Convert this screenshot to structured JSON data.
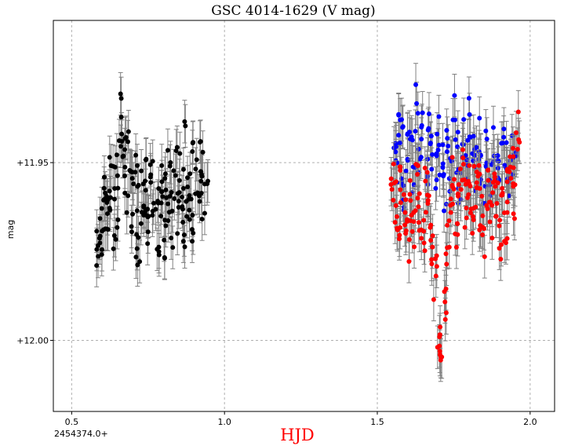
{
  "chart_data": {
    "type": "scatter",
    "title": "GSC 4014-1629 (V mag)",
    "xlabel": "HJD",
    "ylabel": "mag",
    "x_offset_label": "2454374.0+",
    "xlim": [
      0.44,
      2.08
    ],
    "ylim": [
      12.02,
      11.91
    ],
    "y_inverted": true,
    "xticks": [
      0.5,
      1.0,
      1.5,
      2.0
    ],
    "xtick_labels": [
      "0.5",
      "1.0",
      "1.5",
      "2.0"
    ],
    "yticks": [
      11.95,
      12.0
    ],
    "ytick_labels": [
      "+11.95",
      "+12.00"
    ],
    "grid": true,
    "error_bar_color": "#808080",
    "xlabel_color": "#ff0000",
    "series": [
      {
        "color": "#000000",
        "x_range": [
          0.58,
          0.94
        ],
        "n_points": 200,
        "mag_mean": 11.962,
        "mag_range": [
          11.979,
          11.929
        ],
        "typical_error": 0.006,
        "points": [
          [
            0.58,
            11.972
          ],
          [
            0.59,
            11.968
          ],
          [
            0.59,
            11.975
          ],
          [
            0.6,
            11.966
          ],
          [
            0.6,
            11.97
          ],
          [
            0.61,
            11.962
          ],
          [
            0.61,
            11.955
          ],
          [
            0.62,
            11.96
          ],
          [
            0.62,
            11.966
          ],
          [
            0.63,
            11.952
          ],
          [
            0.63,
            11.961
          ],
          [
            0.64,
            11.97
          ],
          [
            0.64,
            11.958
          ],
          [
            0.65,
            11.948
          ],
          [
            0.65,
            11.964
          ],
          [
            0.66,
            11.935
          ],
          [
            0.66,
            11.943
          ],
          [
            0.67,
            11.949
          ],
          [
            0.67,
            11.955
          ],
          [
            0.68,
            11.94
          ],
          [
            0.68,
            11.962
          ],
          [
            0.69,
            11.95
          ],
          [
            0.7,
            11.967
          ],
          [
            0.7,
            11.958
          ],
          [
            0.71,
            11.97
          ],
          [
            0.71,
            11.953
          ],
          [
            0.72,
            11.962
          ],
          [
            0.72,
            11.975
          ],
          [
            0.73,
            11.958
          ],
          [
            0.73,
            11.966
          ],
          [
            0.74,
            11.952
          ],
          [
            0.74,
            11.961
          ],
          [
            0.75,
            11.97
          ],
          [
            0.75,
            11.964
          ],
          [
            0.76,
            11.948
          ],
          [
            0.76,
            11.957
          ],
          [
            0.77,
            11.966
          ],
          [
            0.78,
            11.972
          ],
          [
            0.78,
            11.96
          ],
          [
            0.79,
            11.968
          ],
          [
            0.79,
            11.955
          ],
          [
            0.8,
            11.962
          ],
          [
            0.8,
            11.976
          ],
          [
            0.81,
            11.958
          ],
          [
            0.81,
            11.966
          ],
          [
            0.82,
            11.95
          ],
          [
            0.82,
            11.962
          ],
          [
            0.83,
            11.97
          ],
          [
            0.83,
            11.956
          ],
          [
            0.84,
            11.947
          ],
          [
            0.85,
            11.958
          ],
          [
            0.85,
            11.965
          ],
          [
            0.86,
            11.953
          ],
          [
            0.86,
            11.96
          ],
          [
            0.87,
            11.968
          ],
          [
            0.87,
            11.945
          ],
          [
            0.88,
            11.955
          ],
          [
            0.88,
            11.962
          ],
          [
            0.89,
            11.97
          ],
          [
            0.89,
            11.958
          ],
          [
            0.9,
            11.95
          ],
          [
            0.9,
            11.965
          ],
          [
            0.91,
            11.956
          ],
          [
            0.92,
            11.948
          ],
          [
            0.92,
            11.962
          ],
          [
            0.93,
            11.953
          ],
          [
            0.93,
            11.96
          ],
          [
            0.94,
            11.958
          ]
        ]
      },
      {
        "color": "#0000ff",
        "x_range": [
          1.55,
          1.95
        ],
        "n_points": 170,
        "mag_mean": 11.95,
        "mag_range": [
          11.966,
          11.928
        ],
        "typical_error": 0.006,
        "points": [
          [
            1.56,
            11.945
          ],
          [
            1.56,
            11.952
          ],
          [
            1.57,
            11.938
          ],
          [
            1.58,
            11.95
          ],
          [
            1.58,
            11.943
          ],
          [
            1.59,
            11.957
          ],
          [
            1.6,
            11.946
          ],
          [
            1.61,
            11.94
          ],
          [
            1.62,
            11.952
          ],
          [
            1.63,
            11.935
          ],
          [
            1.64,
            11.948
          ],
          [
            1.65,
            11.942
          ],
          [
            1.66,
            11.955
          ],
          [
            1.67,
            11.939
          ],
          [
            1.68,
            11.947
          ],
          [
            1.69,
            11.953
          ],
          [
            1.7,
            11.941
          ],
          [
            1.71,
            11.948
          ],
          [
            1.72,
            11.958
          ],
          [
            1.73,
            11.944
          ],
          [
            1.74,
            11.952
          ],
          [
            1.75,
            11.938
          ],
          [
            1.76,
            11.946
          ],
          [
            1.77,
            11.955
          ],
          [
            1.78,
            11.942
          ],
          [
            1.79,
            11.949
          ],
          [
            1.8,
            11.937
          ],
          [
            1.81,
            11.946
          ],
          [
            1.82,
            11.952
          ],
          [
            1.83,
            11.943
          ],
          [
            1.84,
            11.95
          ],
          [
            1.85,
            11.956
          ],
          [
            1.86,
            11.947
          ],
          [
            1.87,
            11.953
          ],
          [
            1.88,
            11.944
          ],
          [
            1.89,
            11.949
          ],
          [
            1.9,
            11.955
          ],
          [
            1.91,
            11.946
          ],
          [
            1.92,
            11.951
          ],
          [
            1.93,
            11.958
          ],
          [
            1.94,
            11.948
          ],
          [
            1.95,
            11.954
          ]
        ]
      },
      {
        "color": "#ff0000",
        "x_range": [
          1.55,
          1.96
        ],
        "n_points": 200,
        "mag_mean": 11.958,
        "mag_range": [
          12.006,
          11.935
        ],
        "typical_error": 0.006,
        "points": [
          [
            1.55,
            11.955
          ],
          [
            1.56,
            11.962
          ],
          [
            1.57,
            11.968
          ],
          [
            1.58,
            11.958
          ],
          [
            1.59,
            11.965
          ],
          [
            1.6,
            11.972
          ],
          [
            1.61,
            11.96
          ],
          [
            1.62,
            11.967
          ],
          [
            1.63,
            11.955
          ],
          [
            1.64,
            11.963
          ],
          [
            1.65,
            11.97
          ],
          [
            1.66,
            11.958
          ],
          [
            1.67,
            11.966
          ],
          [
            1.68,
            11.975
          ],
          [
            1.69,
            11.983
          ],
          [
            1.7,
            11.995
          ],
          [
            1.71,
            12.003
          ],
          [
            1.72,
            11.988
          ],
          [
            1.73,
            11.972
          ],
          [
            1.74,
            11.962
          ],
          [
            1.75,
            11.955
          ],
          [
            1.76,
            11.968
          ],
          [
            1.77,
            11.958
          ],
          [
            1.78,
            11.95
          ],
          [
            1.79,
            11.962
          ],
          [
            1.8,
            11.955
          ],
          [
            1.81,
            11.966
          ],
          [
            1.82,
            11.958
          ],
          [
            1.83,
            11.952
          ],
          [
            1.84,
            11.963
          ],
          [
            1.85,
            11.97
          ],
          [
            1.86,
            11.958
          ],
          [
            1.87,
            11.965
          ],
          [
            1.88,
            11.955
          ],
          [
            1.89,
            11.962
          ],
          [
            1.9,
            11.972
          ],
          [
            1.91,
            11.96
          ],
          [
            1.92,
            11.967
          ],
          [
            1.93,
            11.955
          ],
          [
            1.94,
            11.948
          ],
          [
            1.95,
            11.962
          ],
          [
            1.96,
            11.94
          ]
        ]
      }
    ]
  }
}
